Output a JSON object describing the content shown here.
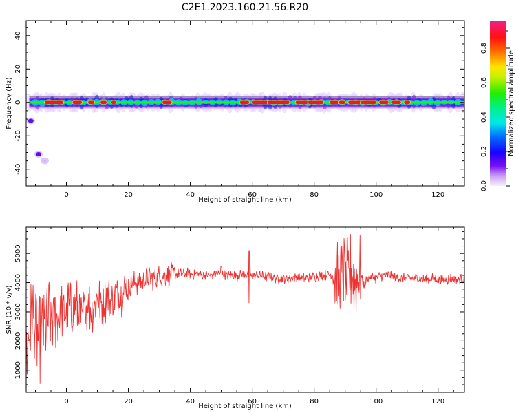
{
  "title": "C2E1.2023.160.21.56.R20",
  "colorbar": {
    "label": "Normalized spectral amplitude",
    "ticks": [
      "0.0",
      "0.2",
      "0.4",
      "0.6",
      "0.8"
    ],
    "tick_values": [
      0.0,
      0.2,
      0.4,
      0.6,
      0.8
    ],
    "range": [
      0,
      0.96
    ]
  },
  "chart_data": [
    {
      "type": "heatmap",
      "xlabel": "Height of straight line (km)",
      "ylabel": "Frequency (Hz)",
      "xlim": [
        -13,
        128.5
      ],
      "ylim": [
        -50,
        49
      ],
      "x_ticks": [
        0,
        20,
        40,
        60,
        80,
        100,
        120
      ],
      "y_ticks": [
        -40,
        -20,
        0,
        20,
        40
      ],
      "band": {
        "center_frequency_hz": 0,
        "hot_segments_km": [
          [
            -7,
            -1
          ],
          [
            2,
            5
          ],
          [
            7,
            9
          ],
          [
            11,
            13
          ],
          [
            14.5,
            16
          ],
          [
            31,
            34
          ],
          [
            56,
            59
          ],
          [
            60,
            65
          ],
          [
            65,
            72
          ],
          [
            74,
            78
          ],
          [
            78,
            83
          ],
          [
            85,
            88
          ],
          [
            88,
            90
          ],
          [
            91,
            95
          ],
          [
            95,
            100
          ],
          [
            101,
            104
          ],
          [
            105,
            108
          ],
          [
            109,
            111
          ]
        ],
        "outliers": [
          {
            "x_km": -11.5,
            "frequency_hz": -11,
            "amplitude": 0.15
          },
          {
            "x_km": -9,
            "frequency_hz": -31,
            "amplitude": 0.2
          },
          {
            "x_km": -7,
            "frequency_hz": -35,
            "amplitude": 0.02
          }
        ]
      }
    },
    {
      "type": "line",
      "xlabel": "Height of straight line (km)",
      "ylabel": "SNR (10 * v/v)",
      "xlim": [
        -13,
        128.5
      ],
      "ylim": [
        240,
        5900
      ],
      "x_ticks": [
        0,
        20,
        40,
        60,
        80,
        100,
        120
      ],
      "y_ticks": [
        1000,
        2000,
        3000,
        4000,
        5000
      ],
      "color": "#ee3333",
      "series": [
        {
          "x": [
            -13,
            -12,
            -11,
            -10,
            -9,
            -8,
            -7,
            -6,
            -5,
            -4,
            -3,
            -2,
            -1,
            0,
            1,
            2,
            3,
            4,
            5,
            6,
            7,
            8,
            9,
            10,
            11,
            12,
            13,
            14,
            15,
            16,
            17,
            18,
            19,
            20,
            22,
            24,
            26,
            28,
            30,
            32,
            34,
            36,
            38,
            40,
            42,
            44,
            46,
            48,
            50,
            52,
            54,
            56,
            58,
            59,
            60,
            62,
            64,
            66,
            68,
            70,
            72,
            74,
            76,
            78,
            80,
            82,
            84,
            86,
            87,
            88,
            89,
            90,
            91,
            92,
            93,
            94,
            95,
            96,
            97,
            98,
            100,
            102,
            104,
            106,
            108,
            110,
            112,
            114,
            116,
            118,
            120,
            122,
            124,
            126,
            128
          ],
          "y": [
            1600,
            2200,
            3000,
            2400,
            2000,
            2300,
            2600,
            2700,
            2600,
            2900,
            2800,
            3000,
            3100,
            3000,
            3200,
            2900,
            3300,
            3000,
            2700,
            3100,
            3400,
            3000,
            3200,
            3500,
            3300,
            3200,
            3600,
            3400,
            3300,
            3700,
            3600,
            3500,
            3800,
            3900,
            4000,
            4000,
            4100,
            4150,
            4200,
            4250,
            4250,
            4300,
            4300,
            4300,
            4300,
            4250,
            4250,
            4300,
            4300,
            4250,
            4250,
            4250,
            4300,
            4200,
            4250,
            4250,
            4200,
            4200,
            4150,
            4150,
            4150,
            4200,
            4150,
            4150,
            4200,
            4250,
            4250,
            4300,
            4100,
            4000,
            4300,
            4200,
            4100,
            4400,
            4000,
            4100,
            4300,
            3900,
            4100,
            4200,
            4150,
            4250,
            4250,
            4200,
            4150,
            4150,
            4150,
            4150,
            4100,
            4150,
            4100,
            4100,
            4150,
            4100,
            4150
          ]
        }
      ]
    }
  ]
}
